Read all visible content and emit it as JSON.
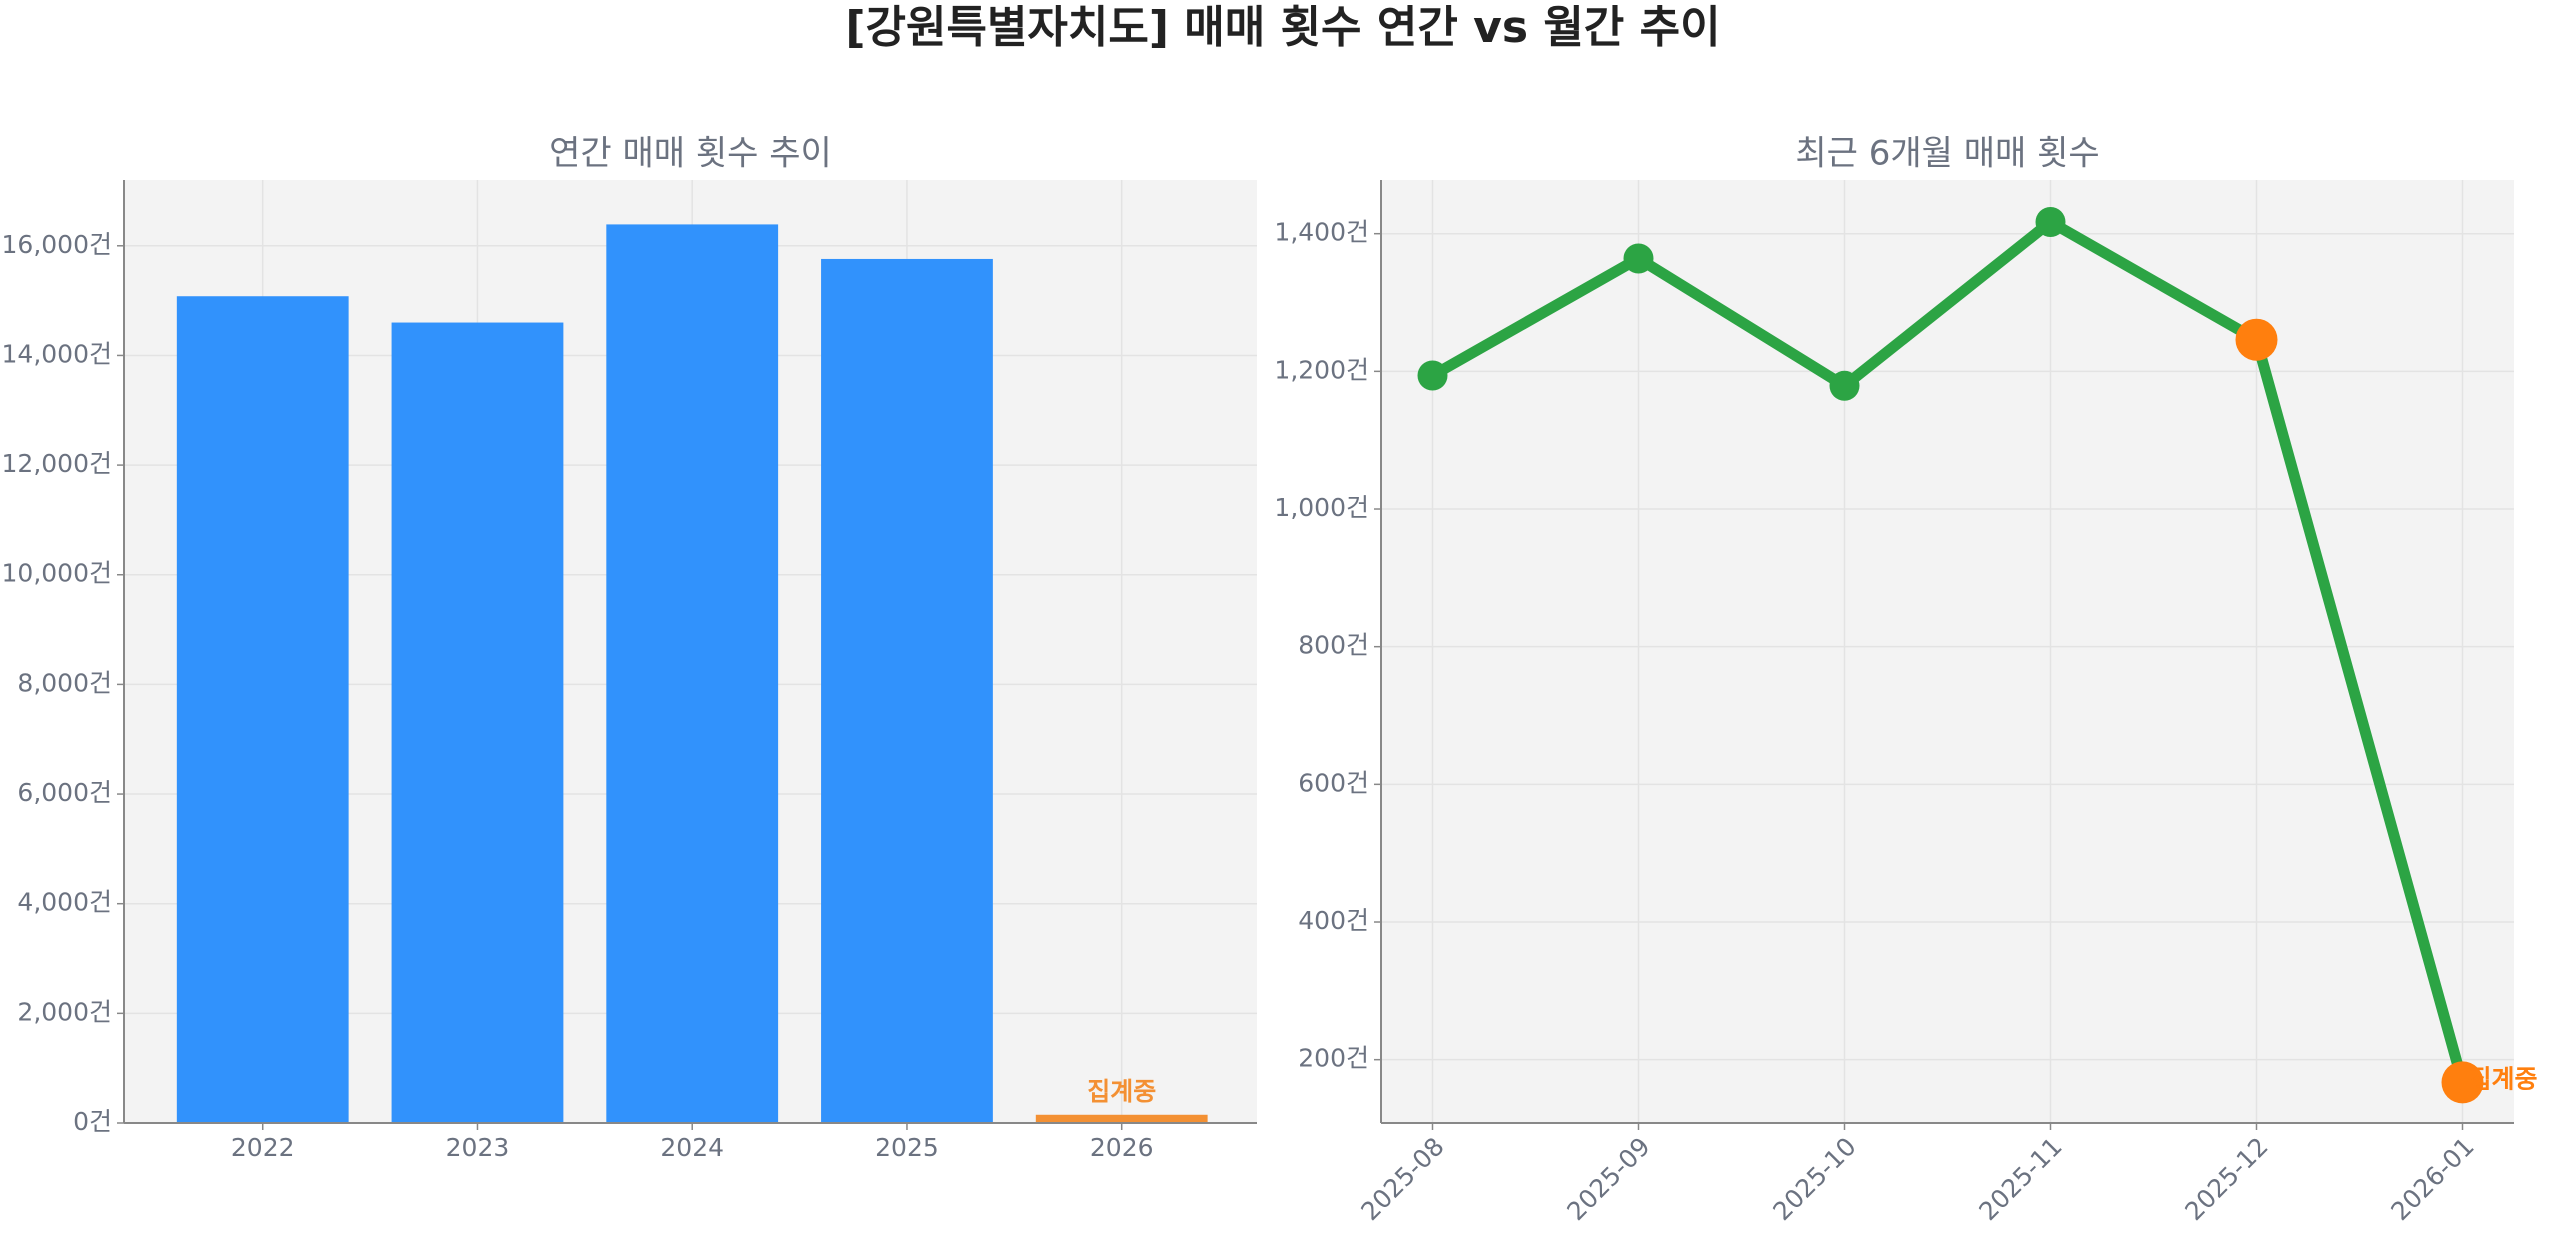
{
  "title": "[강원특별자치도] 매매 횟수 연간 vs 월간 추이",
  "chart_data": [
    {
      "type": "bar",
      "title": "연간 매매 횟수 추이",
      "categories": [
        "2022",
        "2023",
        "2024",
        "2025",
        "2026"
      ],
      "values": [
        15080,
        14600,
        16390,
        15760,
        150
      ],
      "colors": [
        "#3192fc",
        "#3192fc",
        "#3192fc",
        "#3192fc",
        "#f39033"
      ],
      "ylim": [
        0,
        17200
      ],
      "yticks": [
        {
          "value": 0,
          "label": "0건"
        },
        {
          "value": 2000,
          "label": "2,000건"
        },
        {
          "value": 4000,
          "label": "4,000건"
        },
        {
          "value": 6000,
          "label": "6,000건"
        },
        {
          "value": 8000,
          "label": "8,000건"
        },
        {
          "value": 10000,
          "label": "10,000건"
        },
        {
          "value": 12000,
          "label": "12,000건"
        },
        {
          "value": 14000,
          "label": "14,000건"
        },
        {
          "value": 16000,
          "label": "16,000건"
        }
      ],
      "grid": true,
      "annotations": [
        {
          "text": "집계중",
          "category": "2026",
          "color": "#f39033"
        }
      ]
    },
    {
      "type": "line",
      "title": "최근 6개월 매매 횟수",
      "categories": [
        "2025-08",
        "2025-09",
        "2025-10",
        "2025-11",
        "2025-12",
        "2026-01"
      ],
      "series": [
        {
          "color": "#2ca444",
          "values": [
            1194,
            1364,
            1179,
            1417,
            1246,
            167
          ],
          "marker_colors": [
            "#2ca444",
            "#2ca444",
            "#2ca444",
            "#2ca444",
            "#ff7f0e",
            "#ff7f0e"
          ]
        }
      ],
      "ylim": [
        108,
        1478
      ],
      "yticks": [
        {
          "value": 200,
          "label": "200건"
        },
        {
          "value": 400,
          "label": "400건"
        },
        {
          "value": 600,
          "label": "600건"
        },
        {
          "value": 800,
          "label": "800건"
        },
        {
          "value": 1000,
          "label": "1,000건"
        },
        {
          "value": 1200,
          "label": "1,200건"
        },
        {
          "value": 1400,
          "label": "1,400건"
        }
      ],
      "grid": true,
      "annotations": [
        {
          "text": "집계중",
          "category": "2026-01",
          "color": "#ff7f0e"
        }
      ]
    }
  ]
}
